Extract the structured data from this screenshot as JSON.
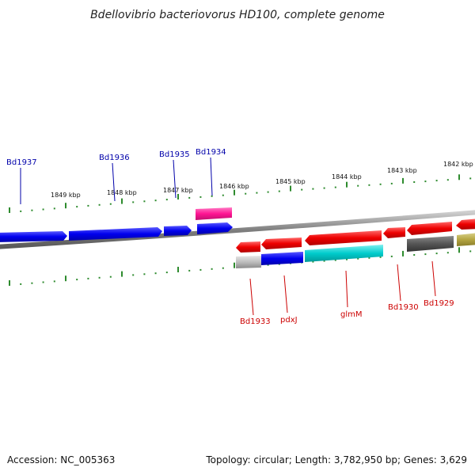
{
  "title": "Bdellovibrio bacteriovorus HD100, complete genome",
  "footer": {
    "accession": "Accession: NC_005363",
    "summary": "Topology: circular; Length: 3,782,950 bp; Genes: 3,629"
  },
  "colors": {
    "blue_label": "#0000aa",
    "red_label": "#cc0000",
    "tick": "#2e8b2e",
    "backbone": "#808080"
  },
  "top_kbp_labels": [
    "1849 kbp",
    "1848 kbp",
    "1847 kbp",
    "1846 kbp",
    "1845 kbp",
    "1844 kbp",
    "1843 kbp",
    "1842 kbp"
  ],
  "top_gene_labels": [
    "Bd1937",
    "Bd1936",
    "Bd1935",
    "Bd1934"
  ],
  "bottom_gene_labels": [
    "Bd1933",
    "pdxJ",
    "glmM",
    "Bd1930",
    "Bd1929"
  ]
}
